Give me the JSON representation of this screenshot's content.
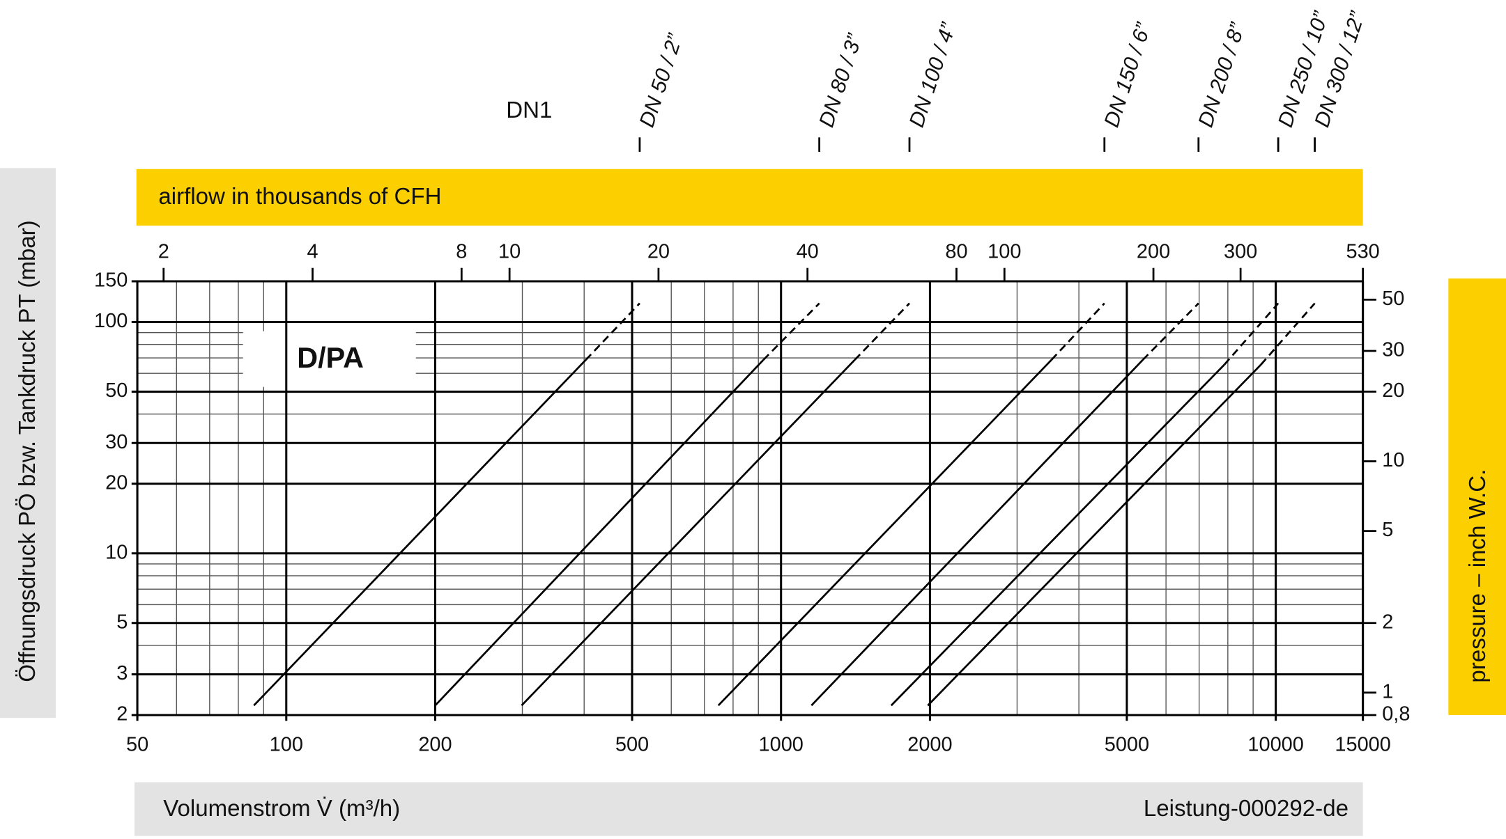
{
  "chart_data": {
    "type": "line",
    "log_x": true,
    "log_y": true,
    "grid": true,
    "title": "D/PA",
    "top_label": "DN1",
    "x2_label": "airflow in thousands of CFH",
    "x_label": "Volumenstrom V̇ (m³/h)",
    "y_label": "Öffnungsdruck PÖ bzw. Tankdruck PT (mbar)",
    "y2_label": "pressure – inch W.C.",
    "note": "Leistung-000292-de",
    "xlim": [
      50,
      15000
    ],
    "xticks": [
      50,
      100,
      200,
      500,
      1000,
      2000,
      5000,
      10000,
      15000
    ],
    "ylim": [
      2,
      150
    ],
    "yticks": [
      2,
      3,
      5,
      10,
      20,
      30,
      50,
      100,
      150
    ],
    "x2lim": [
      1.77,
      530
    ],
    "x2ticks": [
      2,
      4,
      8,
      10,
      20,
      40,
      80,
      100,
      200,
      300,
      530
    ],
    "y2lim": [
      0.8,
      60
    ],
    "y2ticks": [
      {
        "value": 0.8,
        "label": "0,8"
      },
      1,
      2,
      5,
      10,
      20,
      30,
      50
    ],
    "dashed_last_segment": true,
    "color": "#000000",
    "series": [
      {
        "name": "DN 50 / 2”",
        "x": [
          86,
          403,
          518
        ],
        "values": [
          2.2,
          68.6,
          120.5
        ]
      },
      {
        "name": "DN 80 / 3”",
        "x": [
          200,
          921,
          1195
        ],
        "values": [
          2.2,
          68.6,
          120.5
        ]
      },
      {
        "name": "DN 100 / 4”",
        "x": [
          299,
          1409,
          1818
        ],
        "values": [
          2.2,
          68.6,
          120.5
        ]
      },
      {
        "name": "DN 150 / 6”",
        "x": [
          747,
          3520,
          4505
        ],
        "values": [
          2.2,
          68.6,
          120.5
        ]
      },
      {
        "name": "DN 200 / 8”",
        "x": [
          1152,
          5385,
          6980
        ],
        "values": [
          2.2,
          68.6,
          120.5
        ]
      },
      {
        "name": "DN 250 / 10”",
        "x": [
          1670,
          7870,
          10115
        ],
        "values": [
          2.2,
          65.4,
          120.5
        ]
      },
      {
        "name": "DN 300 / 12”",
        "x": [
          1980,
          9330,
          11990
        ],
        "values": [
          2.2,
          65.4,
          120.5
        ]
      }
    ]
  }
}
